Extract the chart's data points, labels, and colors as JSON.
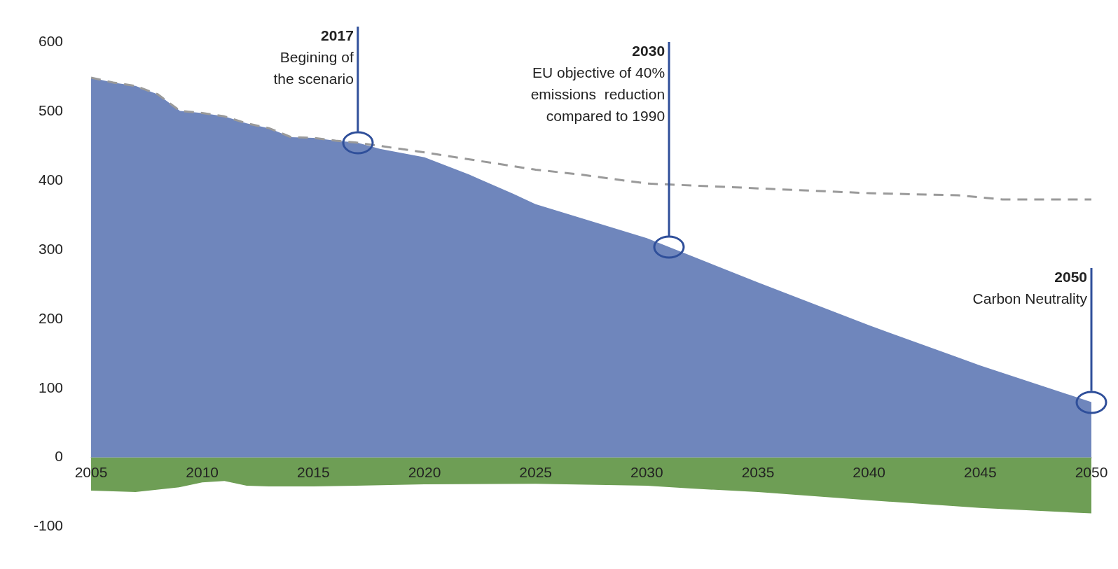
{
  "chart_data": {
    "type": "area",
    "xlim": [
      2005,
      2050
    ],
    "xticks": [
      2005,
      2010,
      2015,
      2020,
      2025,
      2030,
      2035,
      2040,
      2045,
      2050
    ],
    "ylim": [
      -100,
      600
    ],
    "yticks": [
      -100,
      0,
      100,
      200,
      300,
      400,
      500,
      600
    ],
    "grid": false,
    "legend": false,
    "series": [
      {
        "type": "area",
        "color": "#6f86bc",
        "x": [
          2005,
          2006,
          2007,
          2008,
          2009,
          2010,
          2011,
          2012,
          2013,
          2014,
          2015,
          2016,
          2017,
          2018,
          2019,
          2020,
          2022,
          2024,
          2025,
          2030,
          2035,
          2040,
          2045,
          2050
        ],
        "values": [
          549,
          542,
          537,
          525,
          501,
          498,
          493,
          483,
          476,
          463,
          462,
          458,
          455,
          446,
          440,
          434,
          409,
          381,
          366,
          317,
          253,
          191,
          133,
          80
        ]
      },
      {
        "type": "area",
        "color": "#6e9e55",
        "x": [
          2005,
          2007,
          2009,
          2010,
          2011,
          2012,
          2013,
          2015,
          2020,
          2025,
          2030,
          2032,
          2035,
          2040,
          2045,
          2050
        ],
        "values": [
          -48,
          -50,
          -43,
          -36,
          -34,
          -41,
          -42,
          -42,
          -39,
          -38,
          -41,
          -45,
          -50,
          -62,
          -73,
          -81
        ]
      },
      {
        "type": "line",
        "color": "#9a9a9a",
        "line_style": "dashed",
        "marker": "none",
        "x": [
          2005,
          2006,
          2007,
          2008,
          2009,
          2010,
          2011,
          2012,
          2013,
          2014,
          2015,
          2016,
          2017,
          2020,
          2025,
          2027,
          2030,
          2035,
          2040,
          2044,
          2046,
          2050
        ],
        "values": [
          549,
          542,
          537,
          525,
          501,
          498,
          493,
          483,
          476,
          463,
          462,
          458,
          455,
          441,
          416,
          409,
          396,
          389,
          382,
          379,
          373,
          373
        ]
      }
    ],
    "ref_lines": [
      {
        "axis": "x",
        "value": 2017,
        "label": "2017\nBegining of\nthe scenario",
        "color": "#2f4f9a"
      },
      {
        "axis": "x",
        "value": 2031,
        "label": "2030\nEU objective of 40%\nemissions  reduction\ncompared to 1990",
        "color": "#2f4f9a"
      },
      {
        "axis": "x",
        "value": 2050,
        "label": "2050\nCarbon Neutrality",
        "color": "#2f4f9a"
      }
    ]
  }
}
